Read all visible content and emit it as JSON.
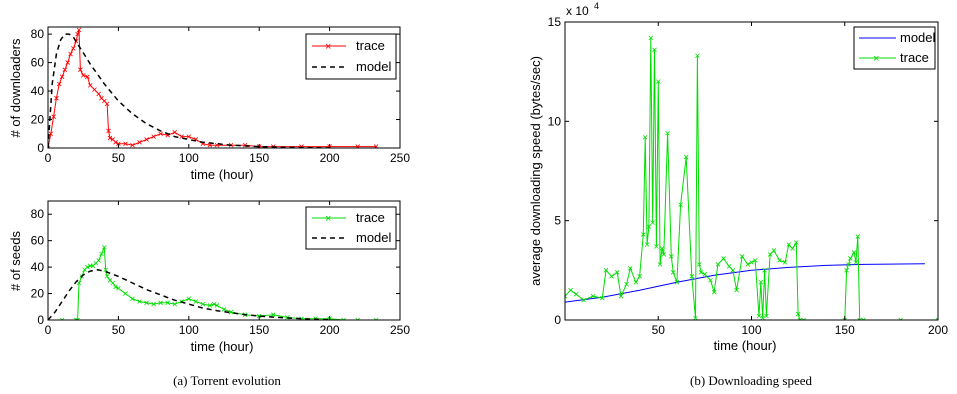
{
  "chart_data": [
    {
      "type": "line",
      "ylabel": "# of downloaders",
      "xlabel": "time (hour)",
      "xlim": [
        0,
        250
      ],
      "ylim": [
        0,
        85
      ],
      "xticks": [
        "0",
        "50",
        "100",
        "150",
        "200",
        "250"
      ],
      "yticks": [
        "0",
        "20",
        "40",
        "60",
        "80"
      ],
      "legend_position": "top-right",
      "series": [
        {
          "name": "trace",
          "color": "#ff0000",
          "style": "solid-x-markers",
          "x": [
            0,
            2,
            4,
            6,
            8,
            10,
            12,
            14,
            16,
            18,
            20,
            21,
            22,
            23,
            25,
            28,
            30,
            33,
            36,
            38,
            40,
            42,
            43,
            44,
            46,
            48,
            50,
            55,
            60,
            65,
            70,
            75,
            80,
            85,
            90,
            95,
            100,
            105,
            110,
            115,
            120,
            130,
            140,
            150,
            160,
            180,
            200,
            220,
            233
          ],
          "y": [
            0,
            10,
            22,
            35,
            45,
            50,
            55,
            60,
            66,
            70,
            75,
            80,
            83,
            55,
            51,
            50,
            44,
            41,
            38,
            35,
            33,
            31,
            12,
            7,
            6,
            4,
            3,
            3,
            2,
            4,
            6,
            8,
            10,
            9,
            11,
            8,
            8,
            6,
            3,
            2,
            2,
            2,
            2,
            1,
            1,
            1,
            1,
            1,
            1
          ]
        },
        {
          "name": "model",
          "color": "#000000",
          "style": "dashed",
          "x": [
            0,
            3,
            6,
            9,
            12,
            15,
            18,
            21,
            25,
            30,
            35,
            40,
            50,
            60,
            70,
            80,
            90,
            100,
            110,
            120,
            130,
            140,
            150,
            165,
            180,
            200
          ],
          "y": [
            0,
            45,
            66,
            76,
            80,
            80,
            78,
            73,
            67,
            59,
            52,
            45,
            33,
            24,
            17,
            12,
            8,
            6,
            4,
            3,
            2,
            1.5,
            1,
            0.5,
            0.3,
            0.1
          ]
        }
      ]
    },
    {
      "type": "line",
      "ylabel": "# of seeds",
      "xlabel": "time (hour)",
      "xlim": [
        0,
        250
      ],
      "ylim": [
        0,
        90
      ],
      "xticks": [
        "0",
        "50",
        "100",
        "150",
        "200",
        "250"
      ],
      "yticks": [
        "0",
        "20",
        "40",
        "60",
        "80"
      ],
      "legend_position": "top-right",
      "series": [
        {
          "name": "trace",
          "color": "#00dd00",
          "style": "solid-x-markers",
          "x": [
            0,
            10,
            20,
            21,
            22,
            24,
            26,
            28,
            30,
            32,
            34,
            36,
            38,
            40,
            41,
            42,
            44,
            46,
            48,
            50,
            55,
            60,
            65,
            70,
            75,
            80,
            85,
            90,
            95,
            100,
            105,
            110,
            115,
            118,
            120,
            125,
            130,
            140,
            150,
            160,
            170,
            180,
            190,
            200,
            210,
            220,
            233
          ],
          "y": [
            0,
            0,
            0,
            0,
            28,
            33,
            38,
            40,
            41,
            41,
            43,
            45,
            50,
            55,
            38,
            33,
            30,
            28,
            25,
            24,
            20,
            16,
            14,
            13,
            12,
            13,
            13,
            12,
            14,
            16,
            14,
            12,
            11,
            12,
            11,
            8,
            6,
            4,
            3,
            4,
            2,
            1,
            1,
            1,
            0,
            0,
            0
          ]
        },
        {
          "name": "model",
          "color": "#000000",
          "style": "dashed",
          "x": [
            0,
            5,
            10,
            15,
            20,
            25,
            30,
            35,
            40,
            50,
            60,
            70,
            80,
            90,
            100,
            110,
            120,
            130,
            140,
            150,
            160,
            170,
            180,
            190,
            200
          ],
          "y": [
            0,
            6,
            14,
            22,
            29,
            34,
            37,
            38,
            37,
            33,
            28,
            23,
            19,
            15,
            12,
            9,
            7,
            5.5,
            4,
            3,
            2.2,
            1.5,
            1,
            0.5,
            0.3
          ]
        }
      ]
    },
    {
      "type": "line",
      "ylabel": "average downloading speed (bytes/sec)",
      "xlabel": "time (hour)",
      "scale_multiplier": "x 10",
      "scale_exponent": "4",
      "xlim": [
        0,
        200
      ],
      "ylim": [
        0,
        15
      ],
      "xticks": [
        "50",
        "100",
        "150",
        "200"
      ],
      "yticks": [
        "0",
        "5",
        "10",
        "15"
      ],
      "legend_position": "top-right",
      "series": [
        {
          "name": "model",
          "color": "#0000ff",
          "style": "solid",
          "x": [
            0,
            20,
            40,
            60,
            80,
            100,
            120,
            140,
            160,
            180,
            193
          ],
          "y": [
            0.9,
            1.15,
            1.5,
            1.9,
            2.25,
            2.5,
            2.65,
            2.75,
            2.8,
            2.82,
            2.83
          ]
        },
        {
          "name": "trace",
          "color": "#00dd00",
          "style": "solid-x-markers",
          "x": [
            0,
            3,
            6,
            10,
            15,
            20,
            22,
            25,
            28,
            30,
            33,
            35,
            38,
            40,
            42,
            43,
            44,
            45,
            46,
            47,
            48,
            49,
            50,
            51,
            52,
            53,
            55,
            57,
            58,
            60,
            62,
            65,
            68,
            70,
            71,
            72,
            73,
            75,
            78,
            80,
            82,
            85,
            88,
            90,
            92,
            95,
            98,
            100,
            102,
            104,
            105,
            106,
            107,
            108,
            110,
            112,
            115,
            118,
            120,
            122,
            124,
            125,
            126,
            128,
            150,
            151,
            152,
            153,
            155,
            156,
            157,
            158,
            160,
            180,
            200
          ],
          "y": [
            1.2,
            1.5,
            1.3,
            1.0,
            1.2,
            1.1,
            2.5,
            2.2,
            2.4,
            1.2,
            1.8,
            2.6,
            1.9,
            2.2,
            4.3,
            9.2,
            3.8,
            4.7,
            14.2,
            4.9,
            13.6,
            3.7,
            12.0,
            2.8,
            3.6,
            3.3,
            9.4,
            3.2,
            2.4,
            1.9,
            5.8,
            8.2,
            2.2,
            0.1,
            13.3,
            2.8,
            2.4,
            2.3,
            2.0,
            1.4,
            2.8,
            3.1,
            2.7,
            2.5,
            1.5,
            3.2,
            2.8,
            2.9,
            3.0,
            0.2,
            1.9,
            0.1,
            2.5,
            0.2,
            3.3,
            3.5,
            3.0,
            2.9,
            3.8,
            3.6,
            3.9,
            0.3,
            0,
            0,
            0,
            2.5,
            2.8,
            3.1,
            3.4,
            2.9,
            4.2,
            0,
            0,
            0,
            0
          ]
        }
      ]
    }
  ],
  "captions": {
    "left": "(a)  Torrent evolution",
    "right": "(b)  Downloading speed"
  }
}
